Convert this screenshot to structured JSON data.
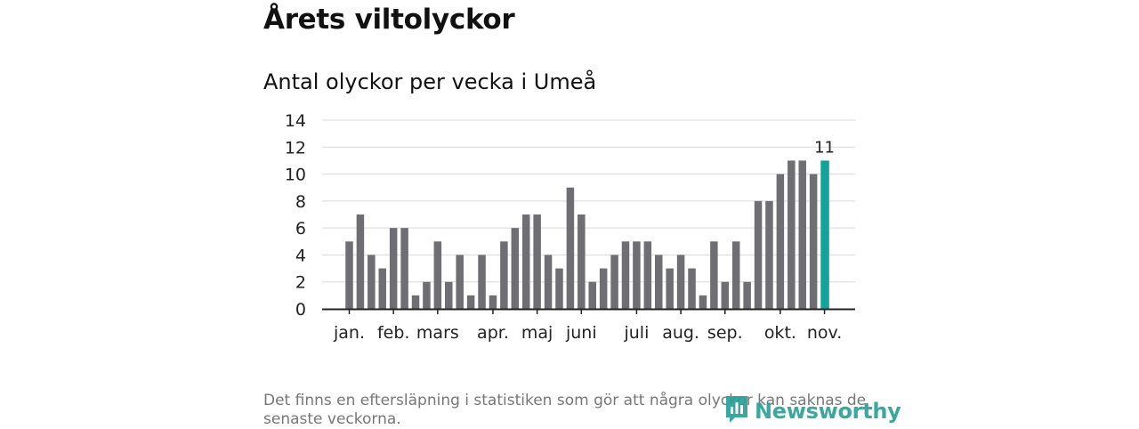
{
  "title": "Årets viltolyckor",
  "subtitle": "Antal olyckor per vecka i Umeå",
  "footnote": "Det finns en eftersläpning i statistiken som gör att några olyckor kan saknas de senaste veckorna.",
  "brand": {
    "name": "Newsworthy",
    "icon": "newsworthy-logo-icon",
    "color": "#2aa198"
  },
  "colors": {
    "bar": "#6e6e73",
    "highlight": "#14a39a",
    "grid": "#d9d9d9",
    "axis": "#222222"
  },
  "chart_data": {
    "type": "bar",
    "title": "Antal olyckor per vecka i Umeå",
    "xlabel": "",
    "ylabel": "",
    "ylim": [
      0,
      14
    ],
    "yticks": [
      0,
      2,
      4,
      6,
      8,
      10,
      12,
      14
    ],
    "grid": true,
    "weeks": [
      1,
      2,
      3,
      4,
      5,
      6,
      7,
      8,
      9,
      10,
      11,
      12,
      13,
      14,
      15,
      16,
      17,
      18,
      19,
      20,
      21,
      22,
      23,
      24,
      25,
      26,
      27,
      28,
      29,
      30,
      31,
      32,
      33,
      34,
      35,
      36,
      37,
      38,
      39,
      40,
      41,
      42,
      43,
      44
    ],
    "values": [
      5,
      7,
      4,
      3,
      6,
      6,
      1,
      2,
      5,
      2,
      4,
      1,
      4,
      1,
      5,
      6,
      7,
      7,
      4,
      3,
      9,
      7,
      2,
      3,
      4,
      5,
      5,
      5,
      4,
      3,
      4,
      3,
      1,
      5,
      2,
      5,
      2,
      8,
      8,
      10,
      11,
      11,
      10,
      11
    ],
    "highlight_index": 43,
    "highlight_label": "11",
    "month_labels": [
      {
        "label": "jan.",
        "week": 1
      },
      {
        "label": "feb.",
        "week": 5
      },
      {
        "label": "mars",
        "week": 9
      },
      {
        "label": "apr.",
        "week": 14
      },
      {
        "label": "maj",
        "week": 18
      },
      {
        "label": "juni",
        "week": 22
      },
      {
        "label": "juli",
        "week": 27
      },
      {
        "label": "aug.",
        "week": 31
      },
      {
        "label": "sep.",
        "week": 35
      },
      {
        "label": "okt.",
        "week": 40
      },
      {
        "label": "nov.",
        "week": 44
      }
    ]
  }
}
